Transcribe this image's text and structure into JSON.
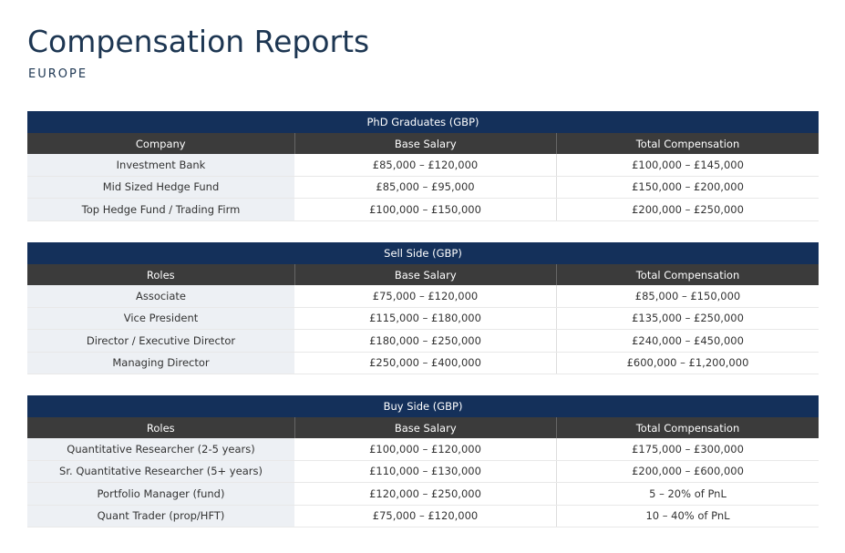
{
  "title": "Compensation Reports",
  "subtitle": "EUROPE",
  "tables": [
    {
      "caption": "PhD Graduates (GBP)",
      "headers": [
        "Company",
        "Base Salary",
        "Total Compensation"
      ],
      "rows": [
        [
          "Investment Bank",
          "£85,000 – £120,000",
          "£100,000 – £145,000"
        ],
        [
          "Mid Sized Hedge Fund",
          "£85,000 – £95,000",
          "£150,000 – £200,000"
        ],
        [
          "Top Hedge Fund / Trading Firm",
          "£100,000 – £150,000",
          "£200,000 – £250,000"
        ]
      ]
    },
    {
      "caption": "Sell Side (GBP)",
      "headers": [
        "Roles",
        "Base Salary",
        "Total Compensation"
      ],
      "rows": [
        [
          "Associate",
          "£75,000 – £120,000",
          "£85,000 – £150,000"
        ],
        [
          "Vice President",
          "£115,000 – £180,000",
          "£135,000 – £250,000"
        ],
        [
          "Director / Executive Director",
          "£180,000 – £250,000",
          "£240,000 – £450,000"
        ],
        [
          "Managing Director",
          "£250,000 – £400,000",
          "£600,000 – £1,200,000"
        ]
      ]
    },
    {
      "caption": "Buy Side (GBP)",
      "headers": [
        "Roles",
        "Base Salary",
        "Total Compensation"
      ],
      "rows": [
        [
          "Quantitative Researcher (2-5 years)",
          "£100,000 – £120,000",
          "£175,000 – £300,000"
        ],
        [
          "Sr. Quantitative Researcher (5+ years)",
          "£110,000 – £130,000",
          "£200,000 – £600,000"
        ],
        [
          "Portfolio Manager (fund)",
          "£120,000 – £250,000",
          "5 – 20% of PnL"
        ],
        [
          "Quant Trader (prop/HFT)",
          "£75,000 – £120,000",
          "10 – 40% of PnL"
        ]
      ]
    }
  ]
}
